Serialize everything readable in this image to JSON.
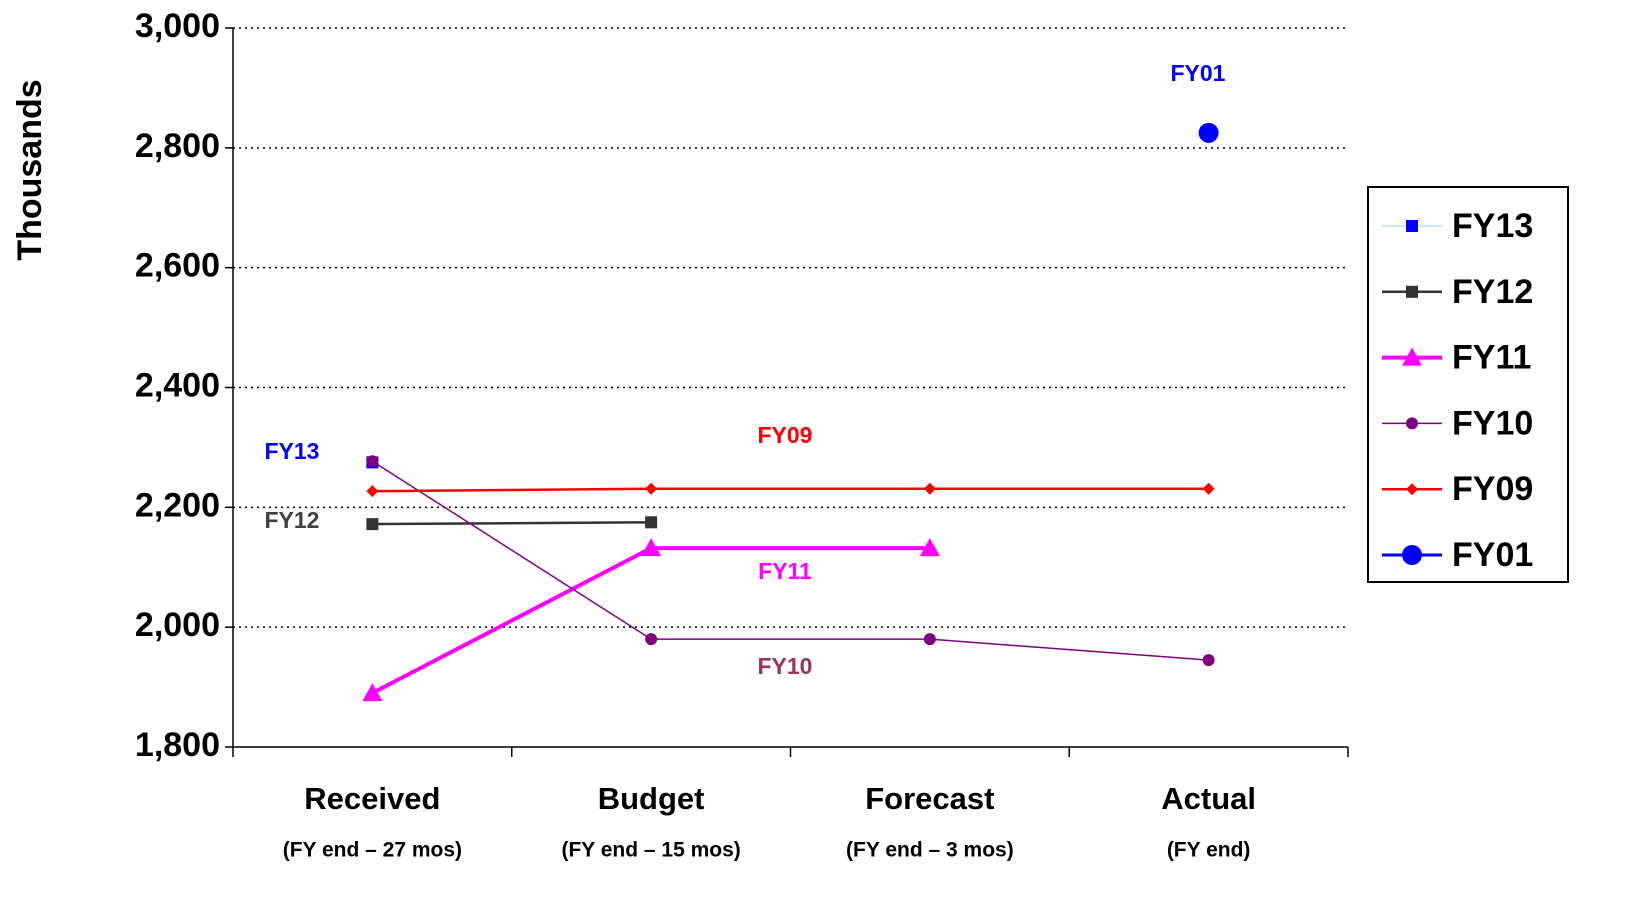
{
  "chart_data": {
    "type": "line",
    "y_axis_label": "Thousands",
    "categories": [
      "Received",
      "Budget",
      "Forecast",
      "Actual"
    ],
    "category_notes": [
      "(FY end – 27 mos)",
      "(FY end – 15 mos)",
      "(FY end – 3 mos)",
      "(FY end)"
    ],
    "ylim": [
      1800,
      3000
    ],
    "yticks": [
      {
        "value": 1800,
        "label": "1,800"
      },
      {
        "value": 2000,
        "label": "2,000"
      },
      {
        "value": 2200,
        "label": "2,200"
      },
      {
        "value": 2400,
        "label": "2,400"
      },
      {
        "value": 2600,
        "label": "2,600"
      },
      {
        "value": 2800,
        "label": "2,800"
      },
      {
        "value": 3000,
        "label": "3,000"
      }
    ],
    "grid": true,
    "legend": "right",
    "series": [
      {
        "name": "FY13",
        "color": "#0000ff",
        "values": [
          2275,
          null,
          null,
          null
        ]
      },
      {
        "name": "FY12",
        "color": "#333333",
        "values": [
          2172,
          2175,
          null,
          null
        ]
      },
      {
        "name": "FY11",
        "color": "#ff00ff",
        "values": [
          1890,
          2132,
          2132,
          null
        ]
      },
      {
        "name": "FY10",
        "color": "#800080",
        "values": [
          2277,
          1980,
          1980,
          1945
        ]
      },
      {
        "name": "FY09",
        "color": "#ff0000",
        "values": [
          2227,
          2231,
          2231,
          2231
        ]
      },
      {
        "name": "FY01",
        "color": "#0000ff",
        "values": [
          null,
          null,
          null,
          2825
        ]
      }
    ],
    "annotations": [
      {
        "text": "FY13",
        "color": "#0000ff"
      },
      {
        "text": "FY12",
        "color": "#404040"
      },
      {
        "text": "FY09",
        "color": "#ff0000"
      },
      {
        "text": "FY11",
        "color": "#ff00ff"
      },
      {
        "text": "FY10",
        "color": "#993366"
      },
      {
        "text": "FY01",
        "color": "#0000ff"
      }
    ]
  }
}
